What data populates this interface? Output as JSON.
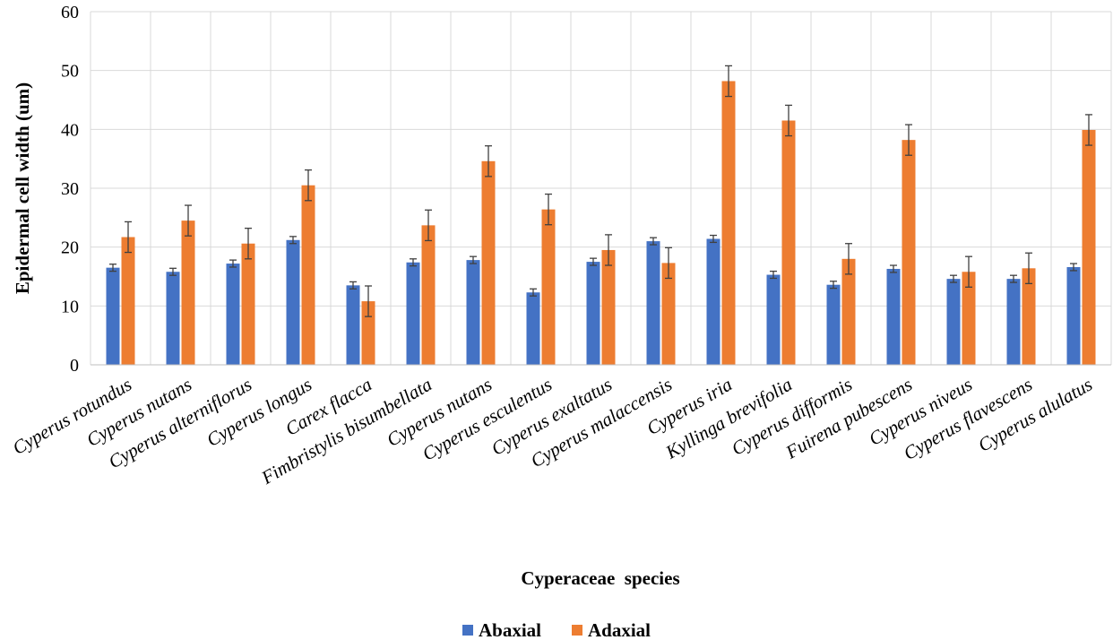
{
  "chart_data": {
    "type": "bar",
    "title": "",
    "xlabel": "Cyperaceae  species",
    "ylabel": "Epidermal cell width (um)",
    "ylim": [
      0,
      60
    ],
    "yticks": [
      0,
      10,
      20,
      30,
      40,
      50,
      60
    ],
    "grid": true,
    "legend_position": "bottom",
    "categories": [
      "Cyperus rotundus",
      "Cyperus nutans",
      "Cyperus alterniflorus",
      "Cyperus longus",
      "Carex flacca",
      "Fimbristylis bisumbellata",
      "Cyperus nutans",
      "Cyperus esculentus",
      "Cyperus exaltatus",
      "Cyperus malaccensis",
      "Cyperus iria",
      "Kyllinga brevifolia",
      "Cyperus difformis",
      "Fuirena pubescens",
      "Cyperus niveus",
      "Cyperus flavescens",
      "Cyperus alulatus"
    ],
    "series": [
      {
        "name": "Abaxial",
        "color": "#4472C4",
        "values": [
          16.5,
          15.8,
          17.2,
          21.2,
          13.5,
          17.4,
          17.8,
          12.3,
          17.5,
          21.0,
          21.4,
          15.3,
          13.6,
          16.3,
          14.6,
          14.6,
          16.6
        ],
        "errors": [
          0.6,
          0.6,
          0.6,
          0.6,
          0.6,
          0.6,
          0.6,
          0.6,
          0.6,
          0.6,
          0.6,
          0.6,
          0.6,
          0.6,
          0.6,
          0.6,
          0.6
        ]
      },
      {
        "name": "Adaxial",
        "color": "#ED7D31",
        "values": [
          21.7,
          24.5,
          20.6,
          30.5,
          10.8,
          23.7,
          34.6,
          26.4,
          19.5,
          17.3,
          48.2,
          41.5,
          18.0,
          38.2,
          15.8,
          16.4,
          39.9
        ],
        "errors": [
          2.6,
          2.6,
          2.6,
          2.6,
          2.6,
          2.6,
          2.6,
          2.6,
          2.6,
          2.6,
          2.6,
          2.6,
          2.6,
          2.6,
          2.6,
          2.6,
          2.6
        ]
      }
    ]
  }
}
